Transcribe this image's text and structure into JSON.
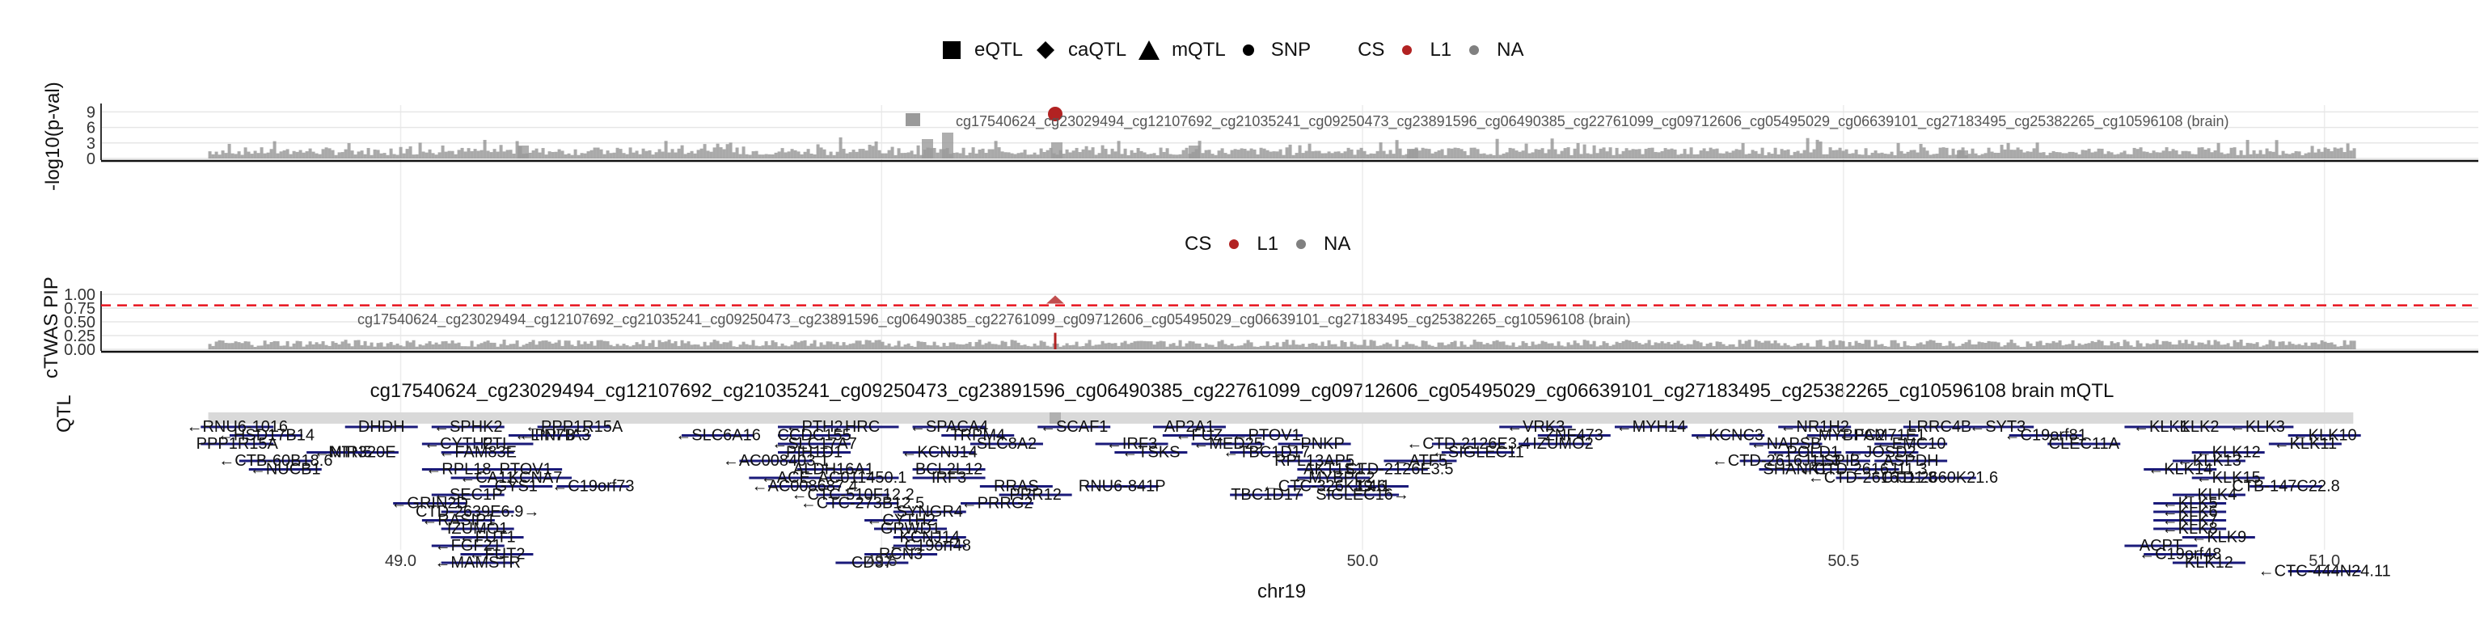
{
  "legend_top": {
    "items": [
      {
        "shape": "square",
        "label": "eQTL"
      },
      {
        "shape": "diamond",
        "label": "caQTL"
      },
      {
        "shape": "triangle",
        "label": "mQTL"
      },
      {
        "shape": "circle",
        "label": "SNP"
      }
    ],
    "cs_title": "CS",
    "cs_items": [
      {
        "label": "L1",
        "color": "#b22222"
      },
      {
        "label": "NA",
        "color": "#808080"
      }
    ]
  },
  "legend_mid": {
    "cs_title": "CS",
    "cs_items": [
      {
        "label": "L1",
        "color": "#b22222"
      },
      {
        "label": "NA",
        "color": "#808080"
      }
    ]
  },
  "panel1": {
    "ylabel": "-log10(p-val)",
    "yticks": [
      "0",
      "3",
      "6",
      "9"
    ],
    "annotation": "cg17540624_cg23029494_cg12107692_cg21035241_cg09250473_cg23891596_cg06490385_cg22761099_cg09712606_cg05495029_cg06639101_cg27183495_cg25382265_cg10596108 (brain)"
  },
  "panel2": {
    "ylabel": "cTWAS PIP",
    "yticks": [
      "0.00",
      "0.25",
      "0.50",
      "0.75",
      "1.00"
    ],
    "threshold": 0.8,
    "annotation": "cg17540624_cg23029494_cg12107692_cg21035241_cg09250473_cg23891596_cg06490385_cg22761099_cg09712606_cg05495029_cg06639101_cg27183495_cg25382265_cg10596108 (brain)"
  },
  "panel3": {
    "title": "cg17540624_cg23029494_cg12107692_cg21035241_cg09250473_cg23891596_cg06490385_cg22761099_cg09712606_cg05495029_cg06639101_cg27183495_cg25382265_cg10596108 brain mQTL",
    "ylabel": "QTL",
    "genes": [
      {
        "label": "←RNU6-1016",
        "x": 48.83,
        "row": 0
      },
      {
        "label": "DHDH",
        "x": 48.98,
        "row": 0
      },
      {
        "label": "←HSD17B14",
        "x": 48.86,
        "row": 1
      },
      {
        "label": "PPP1R15A",
        "x": 48.83,
        "row": 2
      },
      {
        "label": "←NTN5",
        "x": 48.94,
        "row": 3
      },
      {
        "label": "←CTB-60B18.6",
        "x": 48.87,
        "row": 4
      },
      {
        "label": "←NUCB1",
        "x": 48.88,
        "row": 5
      },
      {
        "label": "MIR320E",
        "x": 48.96,
        "row": 3
      },
      {
        "label": "←SPHK2",
        "x": 49.07,
        "row": 0
      },
      {
        "label": "←CYTH2",
        "x": 49.06,
        "row": 2
      },
      {
        "label": "←FAM83E",
        "x": 49.08,
        "row": 3
      },
      {
        "label": "←RPL18",
        "x": 49.06,
        "row": 5
      },
      {
        "label": "←CA11",
        "x": 49.09,
        "row": 6
      },
      {
        "label": "←SEC1P",
        "x": 49.07,
        "row": 8
      },
      {
        "label": "←GRIN2D",
        "x": 49.03,
        "row": 9
      },
      {
        "label": "CTD-2639E6.9→",
        "x": 49.08,
        "row": 10
      },
      {
        "label": "←RASIP1",
        "x": 49.06,
        "row": 11
      },
      {
        "label": "IZUMO1",
        "x": 49.08,
        "row": 12
      },
      {
        "label": "←FUT1",
        "x": 49.09,
        "row": 13
      },
      {
        "label": "←FGF21",
        "x": 49.07,
        "row": 14
      },
      {
        "label": "←FUT2",
        "x": 49.1,
        "row": 15
      },
      {
        "label": "←MAMSTR",
        "x": 49.08,
        "row": 16
      },
      {
        "label": "←PPFIA3",
        "x": 49.16,
        "row": 1
      },
      {
        "label": "FTL",
        "x": 49.1,
        "row": 2
      },
      {
        "label": "←LIN7B",
        "x": 49.15,
        "row": 1
      },
      {
        "label": "←PPP1R15A",
        "x": 49.18,
        "row": 0
      },
      {
        "label": "KCNA7",
        "x": 49.14,
        "row": 6
      },
      {
        "label": "GYS1",
        "x": 49.12,
        "row": 7
      },
      {
        "label": "←C19orf73",
        "x": 49.2,
        "row": 7
      },
      {
        "label": "PTOV1",
        "x": 49.13,
        "row": 5
      },
      {
        "label": "←SLC6A16",
        "x": 49.33,
        "row": 1
      },
      {
        "label": "CCDC155",
        "x": 49.43,
        "row": 1
      },
      {
        "label": "←PTH2",
        "x": 49.43,
        "row": 0
      },
      {
        "label": "HRC",
        "x": 49.48,
        "row": 0
      },
      {
        "label": "←SLC17A7",
        "x": 49.43,
        "row": 2
      },
      {
        "label": "PIH1D1",
        "x": 49.43,
        "row": 3
      },
      {
        "label": "ALDH16A1",
        "x": 49.45,
        "row": 5
      },
      {
        "label": "←ACE",
        "x": 49.4,
        "row": 6
      },
      {
        "label": "←AC008403.1",
        "x": 49.39,
        "row": 4
      },
      {
        "label": "←AC008687.4",
        "x": 49.42,
        "row": 7
      },
      {
        "label": "AC011450.1",
        "x": 49.48,
        "row": 6
      },
      {
        "label": "←CTC-510F12.2",
        "x": 49.47,
        "row": 8
      },
      {
        "label": "←CTC-273B12.5",
        "x": 49.48,
        "row": 9
      },
      {
        "label": "TRPM4",
        "x": 49.6,
        "row": 1
      },
      {
        "label": "SLC8A2",
        "x": 49.63,
        "row": 2
      },
      {
        "label": "←KCNJ14",
        "x": 49.56,
        "row": 3
      },
      {
        "label": "SYNGR4",
        "x": 49.55,
        "row": 10
      },
      {
        "label": "←CYTH2",
        "x": 49.52,
        "row": 11
      },
      {
        "label": "GRWD1",
        "x": 49.53,
        "row": 12
      },
      {
        "label": "KCNJ14",
        "x": 49.55,
        "row": 13
      },
      {
        "label": "←C19orf48",
        "x": 49.55,
        "row": 14
      },
      {
        "label": "RCN3",
        "x": 49.52,
        "row": 15
      },
      {
        "label": "CD37",
        "x": 49.49,
        "row": 16
      },
      {
        "label": "←SPACA4",
        "x": 49.57,
        "row": 0
      },
      {
        "label": "BCL2L12",
        "x": 49.57,
        "row": 5
      },
      {
        "label": "IRF3",
        "x": 49.57,
        "row": 6
      },
      {
        "label": "←PRRG2",
        "x": 49.62,
        "row": 9
      },
      {
        "label": "PRR12",
        "x": 49.66,
        "row": 8
      },
      {
        "label": "RRAS",
        "x": 49.64,
        "row": 7
      },
      {
        "label": "←SCAF1",
        "x": 49.7,
        "row": 0
      },
      {
        "label": "←IRF3",
        "x": 49.76,
        "row": 2
      },
      {
        "label": "←TSKS",
        "x": 49.78,
        "row": 3
      },
      {
        "label": "AP2A1",
        "x": 49.82,
        "row": 0
      },
      {
        "label": "←FUZ",
        "x": 49.83,
        "row": 1
      },
      {
        "label": "←MED25",
        "x": 49.86,
        "row": 2
      },
      {
        "label": "←PTOV1",
        "x": 49.9,
        "row": 1
      },
      {
        "label": "←TBC1D17",
        "x": 49.9,
        "row": 3
      },
      {
        "label": "RNU6-841P",
        "x": 49.75,
        "row": 7
      },
      {
        "label": "RPL13AP5",
        "x": 49.95,
        "row": 4
      },
      {
        "label": "←PNKP",
        "x": 49.95,
        "row": 2
      },
      {
        "label": "AKT1S1",
        "x": 49.97,
        "row": 5
      },
      {
        "label": "TBC1D17",
        "x": 49.9,
        "row": 8
      },
      {
        "label": "←MYBPC2",
        "x": 49.97,
        "row": 6
      },
      {
        "label": "IL4I1",
        "x": 50.01,
        "row": 7
      },
      {
        "label": "←CTC-326K19.6",
        "x": 49.96,
        "row": 7
      },
      {
        "label": "←CTD-2126E3.5",
        "x": 50.03,
        "row": 5
      },
      {
        "label": "SIGLEC16→",
        "x": 50.0,
        "row": 8
      },
      {
        "label": "←ATF5",
        "x": 50.06,
        "row": 4
      },
      {
        "label": "←SIGLEC11",
        "x": 50.12,
        "row": 3
      },
      {
        "label": "←VRK3",
        "x": 50.18,
        "row": 0
      },
      {
        "label": "ZNF473",
        "x": 50.22,
        "row": 1
      },
      {
        "label": "←CTD-2126E3.4",
        "x": 50.11,
        "row": 2
      },
      {
        "label": "←IZUMO2",
        "x": 50.2,
        "row": 2
      },
      {
        "label": "←MYH14",
        "x": 50.3,
        "row": 0
      },
      {
        "label": "←KCNC3",
        "x": 50.38,
        "row": 1
      },
      {
        "label": "←NAPSB",
        "x": 50.44,
        "row": 2
      },
      {
        "label": "←NR1H2",
        "x": 50.47,
        "row": 0
      },
      {
        "label": "←POLD1",
        "x": 50.46,
        "row": 3
      },
      {
        "label": "←SPIB",
        "x": 50.49,
        "row": 4
      },
      {
        "label": "←MYBPC2",
        "x": 50.5,
        "row": 1
      },
      {
        "label": "←FAM71E1",
        "x": 50.54,
        "row": 1
      },
      {
        "label": "←EMC10",
        "x": 50.57,
        "row": 2
      },
      {
        "label": "←JOSD2",
        "x": 50.54,
        "row": 3
      },
      {
        "label": "ASPDH",
        "x": 50.57,
        "row": 4
      },
      {
        "label": "LRRC4B",
        "x": 50.6,
        "row": 0
      },
      {
        "label": "←CTD-2616J11.3",
        "x": 50.43,
        "row": 4
      },
      {
        "label": "SHANK1",
        "x": 50.45,
        "row": 5
      },
      {
        "label": "←C19orf81",
        "x": 50.71,
        "row": 1
      },
      {
        "label": "CLEC11A",
        "x": 50.75,
        "row": 2
      },
      {
        "label": "←SYT3",
        "x": 50.66,
        "row": 0
      },
      {
        "label": "←CTD-2616J11.8",
        "x": 50.53,
        "row": 6
      },
      {
        "label": "CTD-2660K21.6",
        "x": 50.6,
        "row": 6
      },
      {
        "label": "←CTD-2616J11.3",
        "x": 50.52,
        "row": 5
      },
      {
        "label": "←KLK1",
        "x": 50.83,
        "row": 0
      },
      {
        "label": "KLK2",
        "x": 50.87,
        "row": 0
      },
      {
        "label": "←KLK3",
        "x": 50.93,
        "row": 0
      },
      {
        "label": "←KLK10",
        "x": 51.0,
        "row": 1
      },
      {
        "label": "←KLK11",
        "x": 50.98,
        "row": 2
      },
      {
        "label": "←KLK12",
        "x": 50.9,
        "row": 3
      },
      {
        "label": "←KLK13",
        "x": 50.88,
        "row": 4
      },
      {
        "label": "←KLK14",
        "x": 50.85,
        "row": 5
      },
      {
        "label": "←KLK15",
        "x": 50.9,
        "row": 6
      },
      {
        "label": "CTB-147C22.8",
        "x": 50.96,
        "row": 7
      },
      {
        "label": "←KLK4",
        "x": 50.88,
        "row": 8
      },
      {
        "label": "←KLK5",
        "x": 50.86,
        "row": 9
      },
      {
        "label": "←KLK6",
        "x": 50.86,
        "row": 10
      },
      {
        "label": "←KLK7",
        "x": 50.86,
        "row": 11
      },
      {
        "label": "←KLK8",
        "x": 50.86,
        "row": 12
      },
      {
        "label": "←KLK9",
        "x": 50.89,
        "row": 13
      },
      {
        "label": "ACPT",
        "x": 50.83,
        "row": 14
      },
      {
        "label": "←C19orf48",
        "x": 50.85,
        "row": 15
      },
      {
        "label": "KLK12",
        "x": 50.88,
        "row": 16
      },
      {
        "label": "←CTC-444N24.11",
        "x": 51.0,
        "row": 17
      }
    ]
  },
  "xaxis": {
    "label": "chr19",
    "ticks": [
      49.0,
      49.5,
      50.0,
      50.5,
      51.0
    ],
    "tick_labels": [
      "49.0",
      "49.5",
      "50.0",
      "50.5",
      "51.0"
    ],
    "range": [
      48.76,
      51.16
    ]
  },
  "colors": {
    "l1": "#b22222",
    "na": "#808080",
    "threshold": "#e8141e",
    "gene": "#1a1a7a"
  }
}
